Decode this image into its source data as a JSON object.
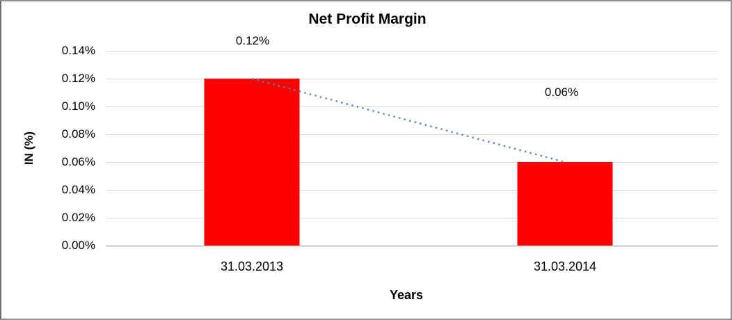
{
  "chart_data": {
    "type": "bar",
    "title": "Net Profit Margin",
    "xlabel": "Years",
    "ylabel": "IN (%)",
    "categories": [
      "31.03.2013",
      "31.03.2014"
    ],
    "values": [
      0.12,
      0.06
    ],
    "data_labels": [
      "0.12%",
      "0.06%"
    ],
    "y_ticks": [
      "0.00%",
      "0.02%",
      "0.04%",
      "0.06%",
      "0.08%",
      "0.10%",
      "0.12%",
      "0.14%"
    ],
    "ylim": [
      0,
      0.14
    ],
    "grid": true,
    "legend_position": "none",
    "bar_color": "#ff0000",
    "trendline_color": "#4a86c8",
    "trendline_style": "dotted",
    "gridline_color": "#d9d9d9",
    "axis_line_color": "#c9c9c9",
    "text_color": "#000000"
  }
}
